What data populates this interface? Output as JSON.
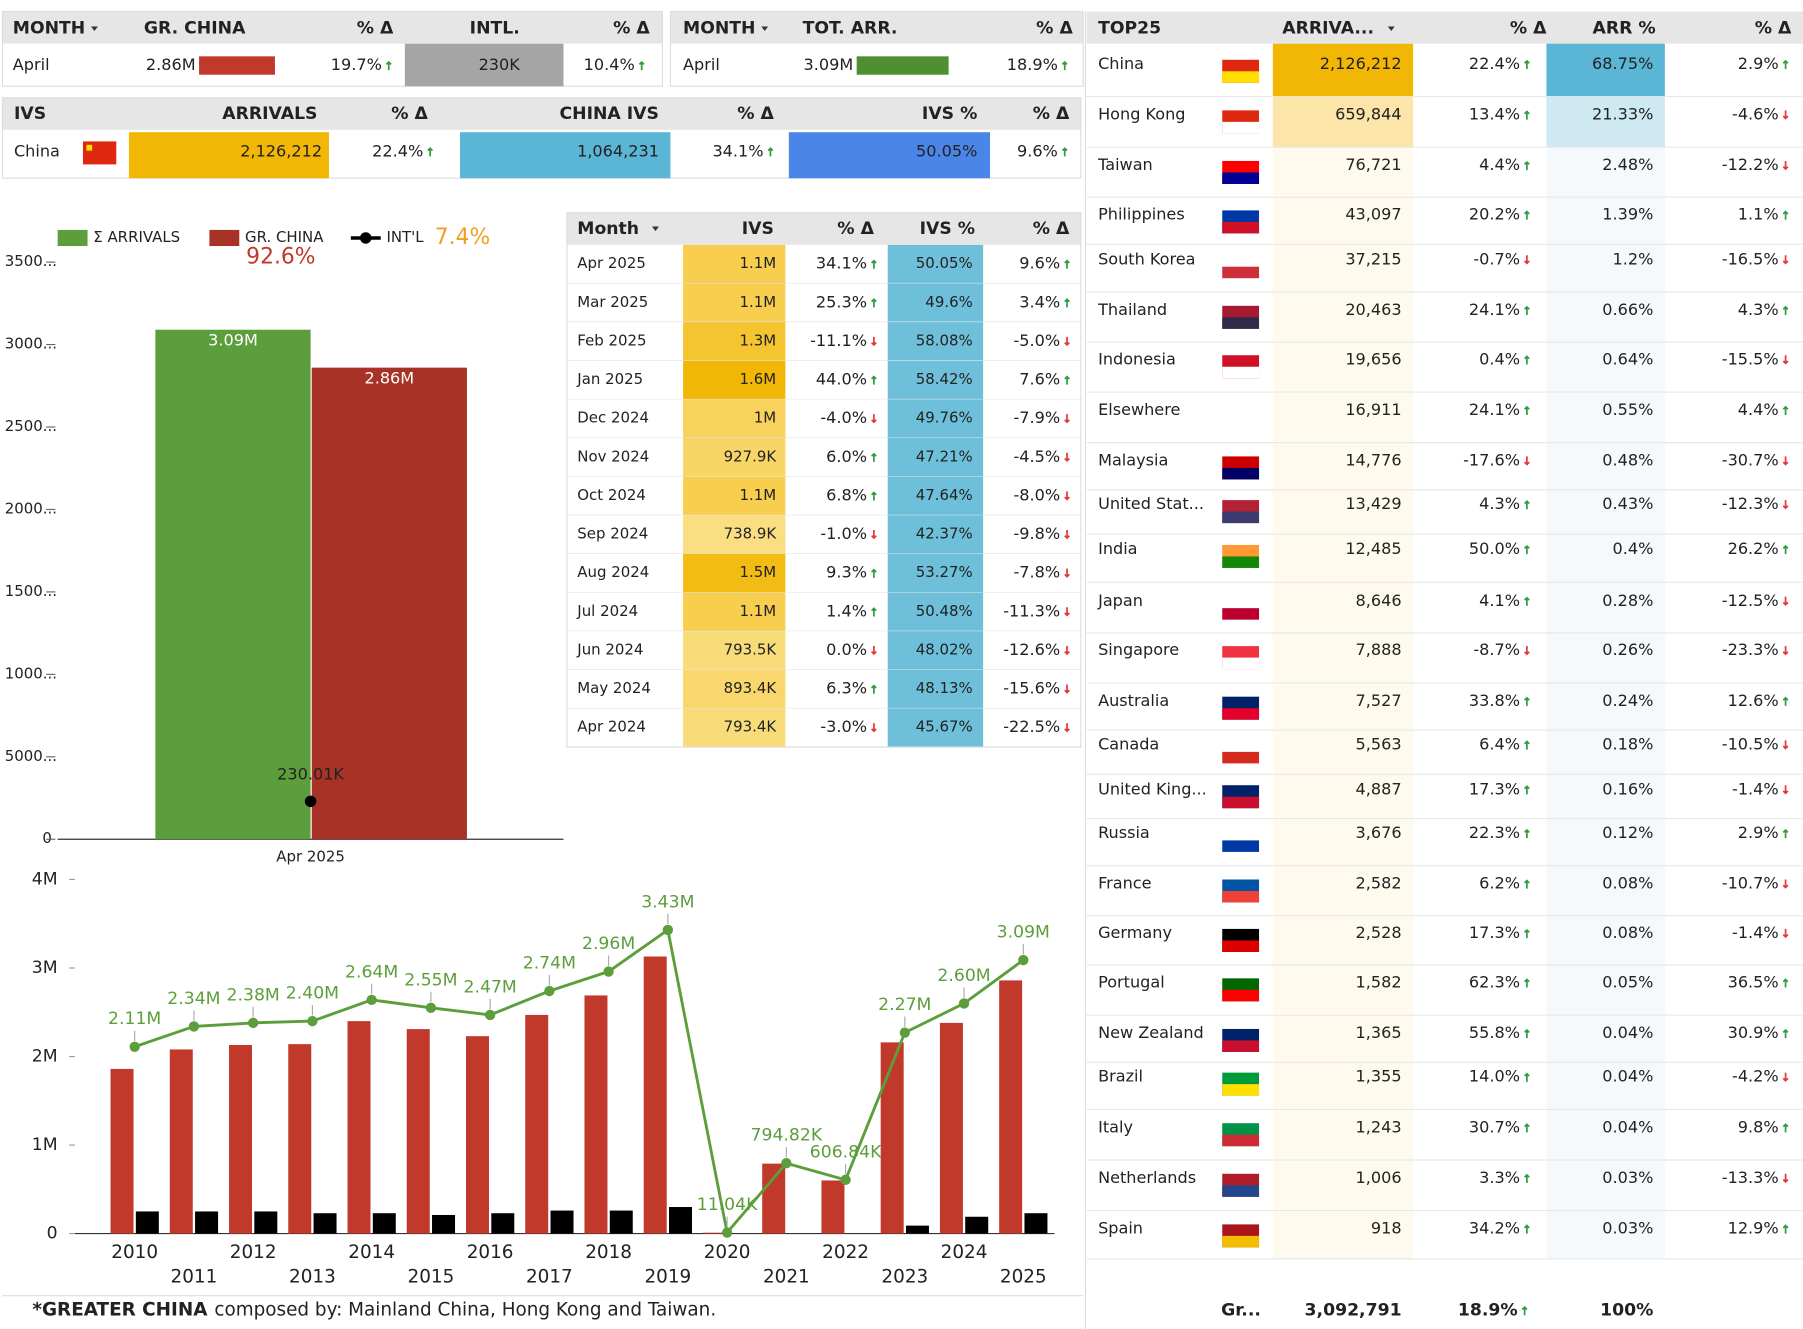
{
  "kpi_gr_china": {
    "headers": [
      "MONTH",
      "GR. CHINA",
      "% Δ",
      "INTL.",
      "% Δ"
    ],
    "row": [
      "April",
      "2.86M",
      "19.7%",
      "230K",
      "10.4%"
    ]
  },
  "kpi_total": {
    "headers": [
      "MONTH",
      "TOT. ARR.",
      "% Δ"
    ],
    "row": [
      "April",
      "3.09M",
      "18.9%"
    ]
  },
  "ivs_summary": {
    "headers": [
      "IVS",
      "ARRIVALS",
      "% Δ",
      "CHINA IVS",
      "% Δ",
      "IVS %",
      "% Δ"
    ],
    "row": [
      "China",
      "2,126,212",
      "22.4%",
      "1,064,231",
      "34.1%",
      "50.05%",
      "9.6%"
    ]
  },
  "chart_data": [
    {
      "type": "bar",
      "categories": [
        "Apr 2025"
      ],
      "series": [
        {
          "name": "Σ ARRIVALS",
          "color": "#5d9e3c",
          "values": [
            3090000
          ],
          "value_labels": [
            "3.09M"
          ]
        },
        {
          "name": "GR. CHINA",
          "color": "#a93226",
          "values": [
            2860000
          ],
          "value_labels": [
            "2.86M"
          ],
          "share": 92.6,
          "share_label": "92.6%"
        },
        {
          "name": "INT'L",
          "color": "#000000",
          "type": "line",
          "values": [
            230010
          ],
          "value_labels": [
            "230.01K"
          ],
          "share": 7.4,
          "share_label": "7.4%"
        }
      ],
      "ylim": [
        0,
        3500000
      ],
      "yticks": [
        0,
        {
          "value": 500000,
          "label": "5000..."
        },
        {
          "value": 1000000,
          "label": "1000..."
        },
        {
          "value": 1500000,
          "label": "1500..."
        },
        {
          "value": 2000000,
          "label": "2000..."
        },
        {
          "value": 2500000,
          "label": "2500..."
        },
        {
          "value": 3000000,
          "label": "3000..."
        },
        {
          "value": 3500000,
          "label": "3500..."
        }
      ]
    },
    {
      "type": "bar",
      "categories": [
        "2010",
        "2011",
        "2012",
        "2013",
        "2014",
        "2015",
        "2016",
        "2017",
        "2018",
        "2019",
        "2020",
        "2021",
        "2022",
        "2023",
        "2024",
        "2025"
      ],
      "series": [
        {
          "color": "#c0392b",
          "values": [
            1860000,
            2080000,
            2130000,
            2140000,
            2400000,
            2310000,
            2230000,
            2470000,
            2690000,
            3130000,
            10000,
            790000,
            600000,
            2160000,
            2380000,
            2860000
          ]
        },
        {
          "color": "#000000",
          "values": [
            250000,
            250000,
            250000,
            230000,
            230000,
            210000,
            230000,
            260000,
            260000,
            300000,
            0,
            0,
            0,
            90000,
            190000,
            230000
          ]
        },
        {
          "type": "line",
          "color": "#5d9e3c",
          "values": [
            2110000,
            2340000,
            2380000,
            2400000,
            2640000,
            2550000,
            2470000,
            2740000,
            2960000,
            3430000,
            11040,
            794820,
            606840,
            2270000,
            2600000,
            3090000
          ],
          "value_labels": [
            "2.11M",
            "2.34M",
            "2.38M",
            "2.40M",
            "2.64M",
            "2.55M",
            "2.47M",
            "2.74M",
            "2.96M",
            "3.43M",
            "11.04K",
            "794.82K",
            "606.84K",
            "2.27M",
            "2.60M",
            "3.09M"
          ]
        }
      ],
      "ylim": [
        0,
        4000000
      ],
      "yticks": [
        0,
        {
          "value": 1000000,
          "label": "1M"
        },
        {
          "value": 2000000,
          "label": "2M"
        },
        {
          "value": 3000000,
          "label": "3M"
        },
        {
          "value": 4000000,
          "label": "4M"
        }
      ]
    }
  ],
  "monthly_table": {
    "headers": [
      "Month",
      "IVS",
      "% Δ",
      "IVS %",
      "% Δ"
    ],
    "rows": [
      [
        "Apr 2025",
        "1.1M",
        "34.1%",
        "50.05%",
        "9.6%"
      ],
      [
        "Mar 2025",
        "1.1M",
        "25.3%",
        "49.6%",
        "3.4%"
      ],
      [
        "Feb 2025",
        "1.3M",
        "-11.1%",
        "58.08%",
        "-5.0%"
      ],
      [
        "Jan 2025",
        "1.6M",
        "44.0%",
        "58.42%",
        "7.6%"
      ],
      [
        "Dec 2024",
        "1M",
        "-4.0%",
        "49.76%",
        "-7.9%"
      ],
      [
        "Nov 2024",
        "927.9K",
        "6.0%",
        "47.21%",
        "-4.5%"
      ],
      [
        "Oct 2024",
        "1.1M",
        "6.8%",
        "47.64%",
        "-8.0%"
      ],
      [
        "Sep 2024",
        "738.9K",
        "-1.0%",
        "42.37%",
        "-9.8%"
      ],
      [
        "Aug 2024",
        "1.5M",
        "9.3%",
        "53.27%",
        "-7.8%"
      ],
      [
        "Jul 2024",
        "1.1M",
        "1.4%",
        "50.48%",
        "-11.3%"
      ],
      [
        "Jun 2024",
        "793.5K",
        "0.0%",
        "48.02%",
        "-12.6%"
      ],
      [
        "May 2024",
        "893.4K",
        "6.3%",
        "48.13%",
        "-15.6%"
      ],
      [
        "Apr 2024",
        "793.4K",
        "-3.0%",
        "45.67%",
        "-22.5%"
      ]
    ]
  },
  "top25_table": {
    "headers": [
      "TOP25",
      "ARRIVA...",
      "% Δ",
      "ARR %",
      "% Δ"
    ],
    "rows": [
      [
        "China",
        "2,126,212",
        "22.4%",
        "68.75%",
        "2.9%"
      ],
      [
        "Hong Kong",
        "659,844",
        "13.4%",
        "21.33%",
        "-4.6%"
      ],
      [
        "Taiwan",
        "76,721",
        "4.4%",
        "2.48%",
        "-12.2%"
      ],
      [
        "Philippines",
        "43,097",
        "20.2%",
        "1.39%",
        "1.1%"
      ],
      [
        "South Korea",
        "37,215",
        "-0.7%",
        "1.2%",
        "-16.5%"
      ],
      [
        "Thailand",
        "20,463",
        "24.1%",
        "0.66%",
        "4.3%"
      ],
      [
        "Indonesia",
        "19,656",
        "0.4%",
        "0.64%",
        "-15.5%"
      ],
      [
        "Elsewhere",
        "16,911",
        "24.1%",
        "0.55%",
        "4.4%"
      ],
      [
        "Malaysia",
        "14,776",
        "-17.6%",
        "0.48%",
        "-30.7%"
      ],
      [
        "United Stat...",
        "13,429",
        "4.3%",
        "0.43%",
        "-12.3%"
      ],
      [
        "India",
        "12,485",
        "50.0%",
        "0.4%",
        "26.2%"
      ],
      [
        "Japan",
        "8,646",
        "4.1%",
        "0.28%",
        "-12.5%"
      ],
      [
        "Singapore",
        "7,888",
        "-8.7%",
        "0.26%",
        "-23.3%"
      ],
      [
        "Australia",
        "7,527",
        "33.8%",
        "0.24%",
        "12.6%"
      ],
      [
        "Canada",
        "5,563",
        "6.4%",
        "0.18%",
        "-10.5%"
      ],
      [
        "United King...",
        "4,887",
        "17.3%",
        "0.16%",
        "-1.4%"
      ],
      [
        "Russia",
        "3,676",
        "22.3%",
        "0.12%",
        "2.9%"
      ],
      [
        "France",
        "2,582",
        "6.2%",
        "0.08%",
        "-10.7%"
      ],
      [
        "Germany",
        "2,528",
        "17.3%",
        "0.08%",
        "-1.4%"
      ],
      [
        "Portugal",
        "1,582",
        "62.3%",
        "0.05%",
        "36.5%"
      ],
      [
        "New Zealand",
        "1,365",
        "55.8%",
        "0.04%",
        "30.9%"
      ],
      [
        "Brazil",
        "1,355",
        "14.0%",
        "0.04%",
        "-4.2%"
      ],
      [
        "Italy",
        "1,243",
        "30.7%",
        "0.04%",
        "9.8%"
      ],
      [
        "Netherlands",
        "1,006",
        "3.3%",
        "0.03%",
        "-13.3%"
      ],
      [
        "Spain",
        "918",
        "34.2%",
        "0.03%",
        "12.9%"
      ]
    ],
    "footer": [
      "Gr...",
      "3,092,791",
      "18.9%",
      "100%"
    ]
  },
  "footnote": {
    "bold": "*GREATER CHINA",
    "text": "composed by: Mainland China, Hong Kong and Taiwan."
  }
}
